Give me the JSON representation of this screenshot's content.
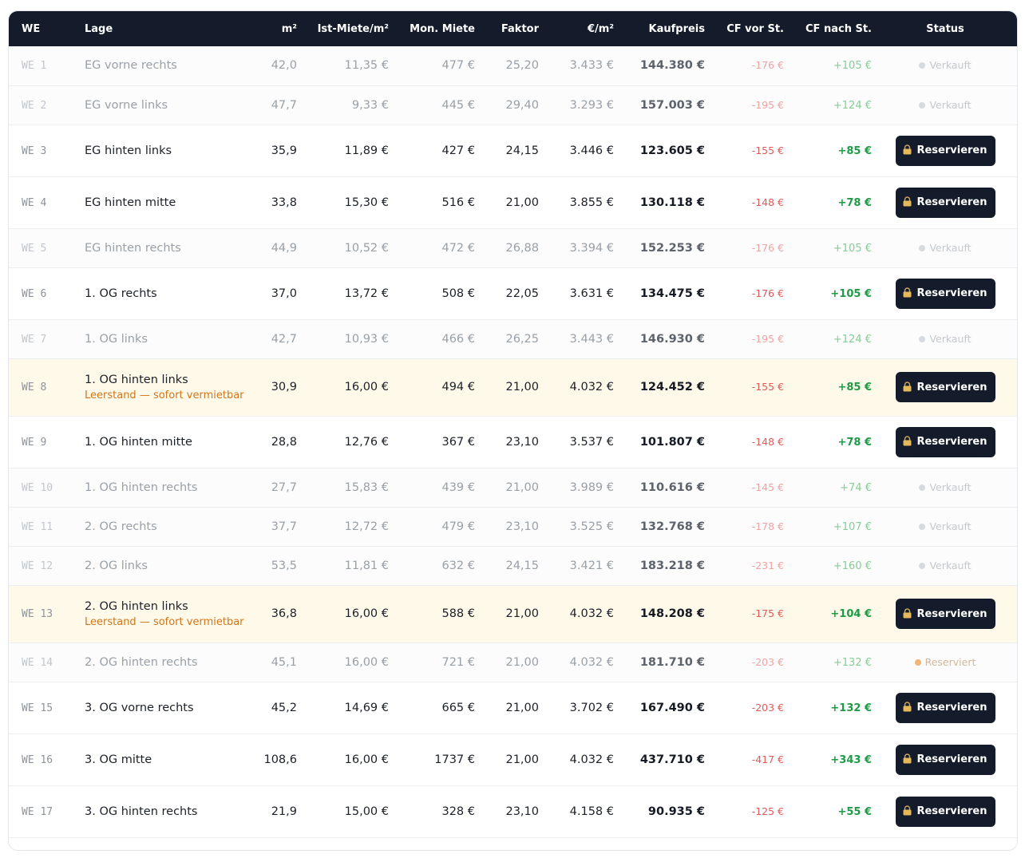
{
  "columns": [
    "WE",
    "Lage",
    "m²",
    "Ist-Miete/m²",
    "Mon. Miete",
    "Faktor",
    "€/m²",
    "Kaufpreis",
    "CF vor St.",
    "CF nach St.",
    "Status"
  ],
  "button_label": "Reservieren",
  "rows": [
    {
      "we": "WE 1",
      "lage": "EG vorne rechts",
      "note": "",
      "m2": "42,0",
      "miete_m2": "11,35 €",
      "mon": "477 €",
      "faktor": "25,20",
      "eur_m2": "3.433 €",
      "kaufpreis": "144.380 €",
      "cf_vor": "-176 €",
      "cf_nach": "+105 €",
      "state": "sold",
      "status": "Verkauft"
    },
    {
      "we": "WE 2",
      "lage": "EG vorne links",
      "note": "",
      "m2": "47,7",
      "miete_m2": "9,33 €",
      "mon": "445 €",
      "faktor": "29,40",
      "eur_m2": "3.293 €",
      "kaufpreis": "157.003 €",
      "cf_vor": "-195 €",
      "cf_nach": "+124 €",
      "state": "sold",
      "status": "Verkauft"
    },
    {
      "we": "WE 3",
      "lage": "EG hinten links",
      "note": "",
      "m2": "35,9",
      "miete_m2": "11,89 €",
      "mon": "427 €",
      "faktor": "24,15",
      "eur_m2": "3.446 €",
      "kaufpreis": "123.605 €",
      "cf_vor": "-155 €",
      "cf_nach": "+85 €",
      "state": "avail",
      "status": ""
    },
    {
      "we": "WE 4",
      "lage": "EG hinten mitte",
      "note": "",
      "m2": "33,8",
      "miete_m2": "15,30 €",
      "mon": "516 €",
      "faktor": "21,00",
      "eur_m2": "3.855 €",
      "kaufpreis": "130.118 €",
      "cf_vor": "-148 €",
      "cf_nach": "+78 €",
      "state": "avail",
      "status": ""
    },
    {
      "we": "WE 5",
      "lage": "EG hinten rechts",
      "note": "",
      "m2": "44,9",
      "miete_m2": "10,52 €",
      "mon": "472 €",
      "faktor": "26,88",
      "eur_m2": "3.394 €",
      "kaufpreis": "152.253 €",
      "cf_vor": "-176 €",
      "cf_nach": "+105 €",
      "state": "sold",
      "status": "Verkauft"
    },
    {
      "we": "WE 6",
      "lage": "1. OG rechts",
      "note": "",
      "m2": "37,0",
      "miete_m2": "13,72 €",
      "mon": "508 €",
      "faktor": "22,05",
      "eur_m2": "3.631 €",
      "kaufpreis": "134.475 €",
      "cf_vor": "-176 €",
      "cf_nach": "+105 €",
      "state": "avail",
      "status": ""
    },
    {
      "we": "WE 7",
      "lage": "1. OG links",
      "note": "",
      "m2": "42,7",
      "miete_m2": "10,93 €",
      "mon": "466 €",
      "faktor": "26,25",
      "eur_m2": "3.443 €",
      "kaufpreis": "146.930 €",
      "cf_vor": "-195 €",
      "cf_nach": "+124 €",
      "state": "sold",
      "status": "Verkauft"
    },
    {
      "we": "WE 8",
      "lage": "1. OG hinten links",
      "note": "Leerstand — sofort vermietbar",
      "m2": "30,9",
      "miete_m2": "16,00 €",
      "mon": "494 €",
      "faktor": "21,00",
      "eur_m2": "4.032 €",
      "kaufpreis": "124.452 €",
      "cf_vor": "-155 €",
      "cf_nach": "+85 €",
      "state": "vacant",
      "status": ""
    },
    {
      "we": "WE 9",
      "lage": "1. OG hinten mitte",
      "note": "",
      "m2": "28,8",
      "miete_m2": "12,76 €",
      "mon": "367 €",
      "faktor": "23,10",
      "eur_m2": "3.537 €",
      "kaufpreis": "101.807 €",
      "cf_vor": "-148 €",
      "cf_nach": "+78 €",
      "state": "avail",
      "status": ""
    },
    {
      "we": "WE 10",
      "lage": "1. OG hinten rechts",
      "note": "",
      "m2": "27,7",
      "miete_m2": "15,83 €",
      "mon": "439 €",
      "faktor": "21,00",
      "eur_m2": "3.989 €",
      "kaufpreis": "110.616 €",
      "cf_vor": "-145 €",
      "cf_nach": "+74 €",
      "state": "sold",
      "status": "Verkauft"
    },
    {
      "we": "WE 11",
      "lage": "2. OG rechts",
      "note": "",
      "m2": "37,7",
      "miete_m2": "12,72 €",
      "mon": "479 €",
      "faktor": "23,10",
      "eur_m2": "3.525 €",
      "kaufpreis": "132.768 €",
      "cf_vor": "-178 €",
      "cf_nach": "+107 €",
      "state": "sold",
      "status": "Verkauft"
    },
    {
      "we": "WE 12",
      "lage": "2. OG links",
      "note": "",
      "m2": "53,5",
      "miete_m2": "11,81 €",
      "mon": "632 €",
      "faktor": "24,15",
      "eur_m2": "3.421 €",
      "kaufpreis": "183.218 €",
      "cf_vor": "-231 €",
      "cf_nach": "+160 €",
      "state": "sold",
      "status": "Verkauft"
    },
    {
      "we": "WE 13",
      "lage": "2. OG hinten links",
      "note": "Leerstand — sofort vermietbar",
      "m2": "36,8",
      "miete_m2": "16,00 €",
      "mon": "588 €",
      "faktor": "21,00",
      "eur_m2": "4.032 €",
      "kaufpreis": "148.208 €",
      "cf_vor": "-175 €",
      "cf_nach": "+104 €",
      "state": "vacant",
      "status": ""
    },
    {
      "we": "WE 14",
      "lage": "2. OG hinten rechts",
      "note": "",
      "m2": "45,1",
      "miete_m2": "16,00 €",
      "mon": "721 €",
      "faktor": "21,00",
      "eur_m2": "4.032 €",
      "kaufpreis": "181.710 €",
      "cf_vor": "-203 €",
      "cf_nach": "+132 €",
      "state": "reserved",
      "status": "Reserviert"
    },
    {
      "we": "WE 15",
      "lage": "3. OG vorne rechts",
      "note": "",
      "m2": "45,2",
      "miete_m2": "14,69 €",
      "mon": "665 €",
      "faktor": "21,00",
      "eur_m2": "3.702 €",
      "kaufpreis": "167.490 €",
      "cf_vor": "-203 €",
      "cf_nach": "+132 €",
      "state": "avail",
      "status": ""
    },
    {
      "we": "WE 16",
      "lage": "3. OG mitte",
      "note": "",
      "m2": "108,6",
      "miete_m2": "16,00 €",
      "mon": "1737 €",
      "faktor": "21,00",
      "eur_m2": "4.032 €",
      "kaufpreis": "437.710 €",
      "cf_vor": "-417 €",
      "cf_nach": "+343 €",
      "state": "avail",
      "status": ""
    },
    {
      "we": "WE 17",
      "lage": "3. OG hinten rechts",
      "note": "",
      "m2": "21,9",
      "miete_m2": "15,00 €",
      "mon": "328 €",
      "faktor": "23,10",
      "eur_m2": "4.158 €",
      "kaufpreis": "90.935 €",
      "cf_vor": "-125 €",
      "cf_nach": "+55 €",
      "state": "avail",
      "status": ""
    }
  ]
}
